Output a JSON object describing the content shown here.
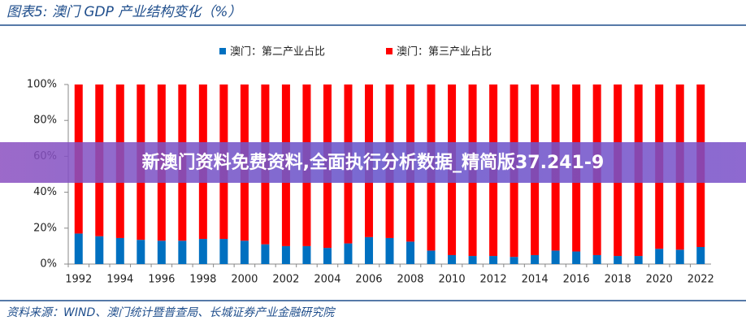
{
  "chart_data": {
    "type": "stacked_bar",
    "title": "图表5:  澳门 GDP 产业结构变化（%）",
    "source": "资料来源：WIND、澳门统计暨普查局、长城证券产业金融研究院",
    "categories": [
      "1992",
      null,
      "1994",
      null,
      "1996",
      null,
      "1998",
      null,
      "2000",
      null,
      "2002",
      null,
      "2004",
      null,
      "2006",
      null,
      "2008",
      null,
      "2010",
      null,
      "2012",
      null,
      "2014",
      null,
      "2016",
      null,
      "2018",
      null,
      "2020",
      null,
      "2022"
    ],
    "series": [
      {
        "name": "澳门：第二产业占比",
        "color": "#0070c0",
        "values": [
          17,
          15.5,
          14.5,
          13.5,
          13,
          13,
          14,
          14,
          13,
          11,
          10,
          10,
          9,
          11.5,
          15,
          14.5,
          12.5,
          7.5,
          5,
          4.5,
          4.5,
          4,
          5,
          7.5,
          7,
          5,
          4.5,
          4.5,
          8.5,
          8,
          9.5
        ]
      },
      {
        "name": "澳门：第三产业占比",
        "color": "#ff0000",
        "values": [
          83,
          84.5,
          85.5,
          86.5,
          87,
          87,
          86,
          86,
          87,
          89,
          90,
          90,
          91,
          88.5,
          85,
          85.5,
          87.5,
          92.5,
          95,
          95.5,
          95.5,
          96,
          95,
          92.5,
          93,
          95,
          95.5,
          95.5,
          91.5,
          92,
          90.5
        ]
      }
    ],
    "ylim": [
      0,
      100
    ],
    "yticks": [
      {
        "value": 0,
        "label": "0%"
      },
      {
        "value": 20,
        "label": "20%"
      },
      {
        "value": 40,
        "label": "40%"
      },
      {
        "value": 60,
        "label": "60%"
      },
      {
        "value": 80,
        "label": "80%"
      },
      {
        "value": 100,
        "label": "100%"
      }
    ],
    "legend": "top"
  },
  "overlay_text": "新澳门资料免费资料,全面执行分析数据_精简版37.241-9"
}
